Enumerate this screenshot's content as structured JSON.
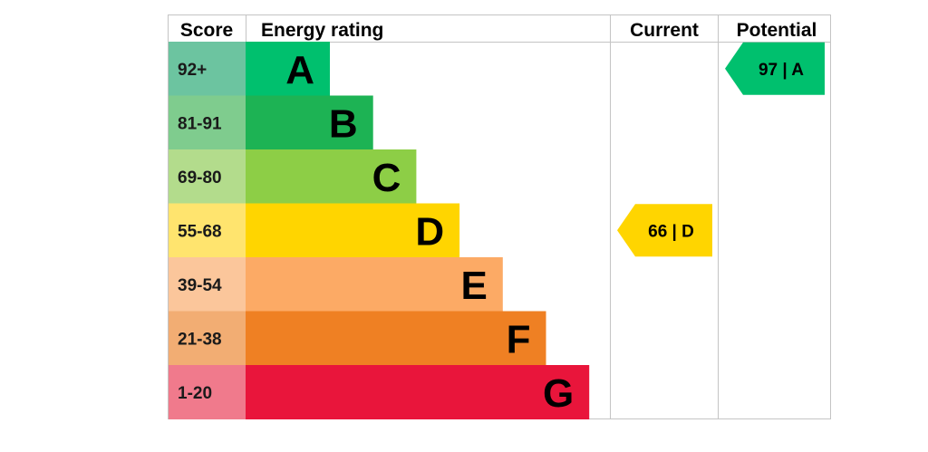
{
  "chart_data": {
    "type": "bar",
    "headers": {
      "score": "Score",
      "rating": "Energy rating",
      "current": "Current",
      "potential": "Potential"
    },
    "bands": [
      {
        "letter": "A",
        "range": "92+",
        "score_color": "#6cc4a0",
        "bar_color": "#00c06e"
      },
      {
        "letter": "B",
        "range": "81-91",
        "score_color": "#7fcc8e",
        "bar_color": "#1db354"
      },
      {
        "letter": "C",
        "range": "69-80",
        "score_color": "#b3dc8c",
        "bar_color": "#8dce46"
      },
      {
        "letter": "D",
        "range": "55-68",
        "score_color": "#ffe46e",
        "bar_color": "#ffd500"
      },
      {
        "letter": "E",
        "range": "39-54",
        "score_color": "#fbc69b",
        "bar_color": "#fcaa65"
      },
      {
        "letter": "F",
        "range": "21-38",
        "score_color": "#f2ad73",
        "bar_color": "#ef8023"
      },
      {
        "letter": "G",
        "range": "1-20",
        "score_color": "#f07a8c",
        "bar_color": "#e9153b"
      }
    ],
    "current": {
      "value": 66,
      "band": "D",
      "label": "66 | D",
      "color": "#ffd500"
    },
    "potential": {
      "value": 97,
      "band": "A",
      "label": "97 | A",
      "color": "#00c06e"
    }
  }
}
